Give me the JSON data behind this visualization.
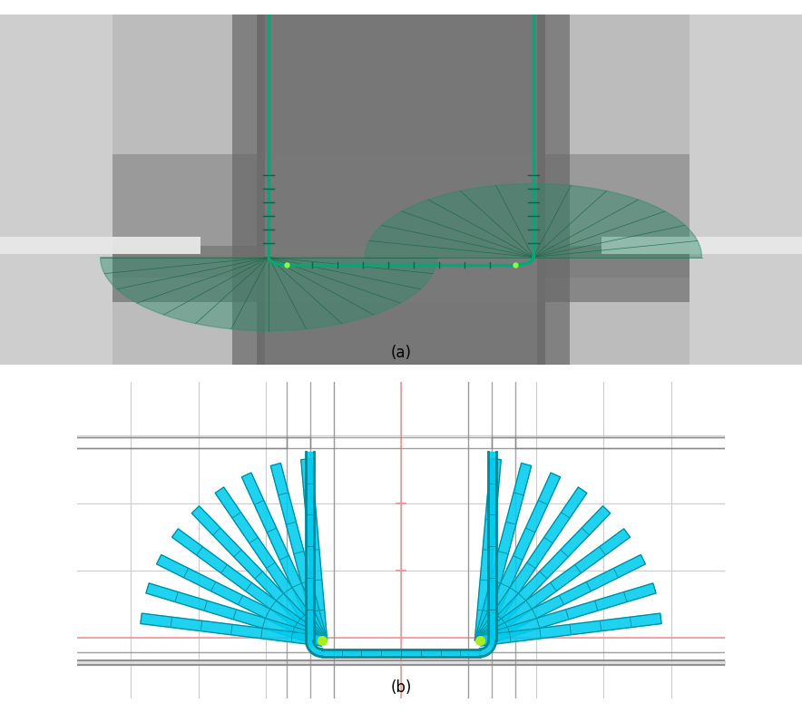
{
  "fig_width": 8.84,
  "fig_height": 7.86,
  "dpi": 100,
  "label_a": "(a)",
  "label_b": "(b)",
  "label_fontsize": 12,
  "bg_color": "#ffffff",
  "panel_a": {
    "outer_light": "#cecece",
    "mid_gray": "#b8b8b8",
    "dark_center": "#7a7a7a",
    "very_dark": "#5a5a5a",
    "punch_dark": "#686868",
    "bright_strip": "#e8e8e8",
    "u_channel_color": "#00aa77",
    "u_channel_edge": "#006644",
    "fan_fill": "#2d8a6a",
    "fan_alpha": 0.45,
    "fan_lines_color": "#1a6644",
    "fan_num_lines": 14
  },
  "panel_b": {
    "bg_color": "#ffffff",
    "grid_color": "#cccccc",
    "grid_lw": 0.8,
    "cross_color": "#ff8888",
    "cross_lw": 1.2,
    "channel_color": "#00ccee",
    "channel_edge": "#008899",
    "channel_lw": 2.0,
    "channel_alpha": 0.9,
    "corner_green": "#aaee22",
    "gray_color": "#888888",
    "gray_lw": 1.0,
    "num_passes": 9,
    "sw": 0.055
  }
}
